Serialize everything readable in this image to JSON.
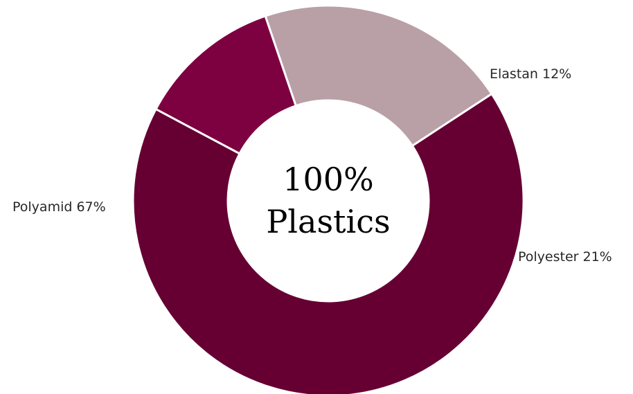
{
  "chart_data": {
    "type": "pie",
    "variant": "donut",
    "center_label": [
      "100%",
      "Plastics"
    ],
    "slices": [
      {
        "label": "Elastan 12%",
        "name": "Elastan",
        "value": 12,
        "color": "#7d0040"
      },
      {
        "label": "Polyester 21%",
        "name": "Polyester",
        "value": 21,
        "color": "#b9a0a6"
      },
      {
        "label": "Polyamid 67%",
        "name": "Polyamid",
        "value": 67,
        "color": "#660033"
      }
    ],
    "separator_color": "#ffffff",
    "legend": "none"
  }
}
